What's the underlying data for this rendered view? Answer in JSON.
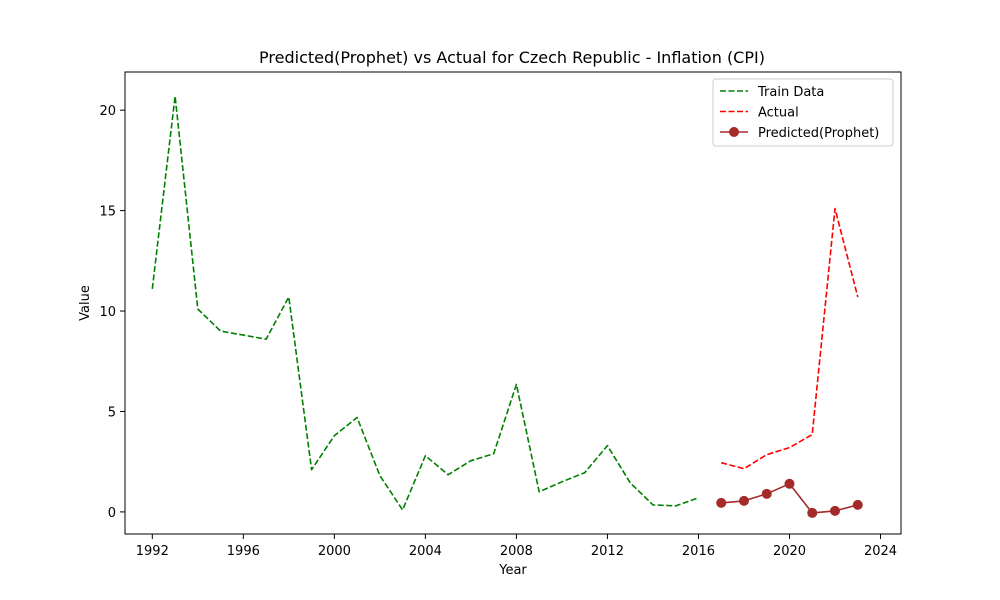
{
  "chart_data": {
    "type": "line",
    "title": "Predicted(Prophet) vs Actual for Czech Republic - Inflation (CPI)",
    "xlabel": "Year",
    "ylabel": "Value",
    "xlim": [
      1990.8,
      2024.9
    ],
    "ylim": [
      -1.1,
      21.9
    ],
    "xticks": [
      1992,
      1996,
      2000,
      2004,
      2008,
      2012,
      2016,
      2020,
      2024
    ],
    "yticks": [
      0,
      5,
      10,
      15,
      20
    ],
    "grid": false,
    "legend_position": "top-right",
    "series": [
      {
        "name": "Train Data",
        "color": "#008000",
        "style": "dashed",
        "marker": "none",
        "x": [
          1992,
          1993,
          1994,
          1995,
          1996,
          1997,
          1998,
          1999,
          2000,
          2001,
          2002,
          2003,
          2004,
          2005,
          2006,
          2007,
          2008,
          2009,
          2010,
          2011,
          2012,
          2013,
          2014,
          2015,
          2016
        ],
        "y": [
          11.1,
          20.7,
          10.1,
          9.0,
          8.8,
          8.6,
          10.7,
          2.1,
          3.8,
          4.7,
          1.8,
          0.1,
          2.8,
          1.85,
          2.55,
          2.9,
          6.35,
          1.0,
          1.5,
          1.95,
          3.3,
          1.45,
          0.35,
          0.3,
          0.7
        ]
      },
      {
        "name": "Actual",
        "color": "#ff0000",
        "style": "dashed",
        "marker": "none",
        "x": [
          2017,
          2018,
          2019,
          2020,
          2021,
          2022,
          2023
        ],
        "y": [
          2.45,
          2.15,
          2.85,
          3.2,
          3.85,
          15.1,
          10.7
        ]
      },
      {
        "name": "Predicted(Prophet)",
        "color": "#a52a2a",
        "style": "solid",
        "marker": "circle",
        "x": [
          2017,
          2018,
          2019,
          2020,
          2021,
          2022,
          2023
        ],
        "y": [
          0.45,
          0.55,
          0.9,
          1.4,
          -0.05,
          0.05,
          0.35
        ]
      }
    ]
  }
}
